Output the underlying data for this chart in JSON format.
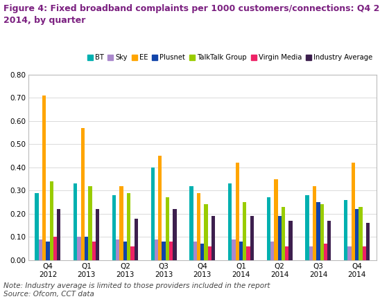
{
  "title_line1": "Figure 4: Fixed broadband complaints per 1000 customers/connections: Q4 2012 – Q4",
  "title_line2": "2014, by quarter",
  "note": "Note: Industry average is limited to those providers included in the report\nSource: Ofcom, CCT data",
  "categories": [
    "Q4\n2012",
    "Q1\n2013",
    "Q2\n2013",
    "Q3\n2013",
    "Q4\n2013",
    "Q1\n2014",
    "Q2\n2014",
    "Q3\n2014",
    "Q4\n2014"
  ],
  "series": {
    "BT": [
      0.29,
      0.33,
      0.28,
      0.4,
      0.32,
      0.33,
      0.27,
      0.28,
      0.26
    ],
    "Sky": [
      0.09,
      0.1,
      0.09,
      0.09,
      0.08,
      0.09,
      0.08,
      0.06,
      0.06
    ],
    "EE": [
      0.71,
      0.57,
      0.32,
      0.45,
      0.29,
      0.42,
      0.35,
      0.32,
      0.42
    ],
    "Plusnet": [
      0.08,
      0.1,
      0.08,
      0.08,
      0.07,
      0.08,
      0.19,
      0.25,
      0.22
    ],
    "TalkTalk Group": [
      0.34,
      0.32,
      0.29,
      0.27,
      0.24,
      0.25,
      0.23,
      0.24,
      0.23
    ],
    "Virgin Media": [
      0.1,
      0.08,
      0.06,
      0.08,
      0.06,
      0.06,
      0.06,
      0.07,
      0.06
    ],
    "Industry Average": [
      0.22,
      0.22,
      0.18,
      0.22,
      0.19,
      0.19,
      0.17,
      0.17,
      0.16
    ]
  },
  "colors": {
    "BT": "#00B0B0",
    "Sky": "#AA88CC",
    "EE": "#FFA500",
    "Plusnet": "#1144AA",
    "TalkTalk Group": "#99CC00",
    "Virgin Media": "#EE2266",
    "Industry Average": "#3D1F4E"
  },
  "ylim": [
    0,
    0.8
  ],
  "yticks": [
    0.0,
    0.1,
    0.2,
    0.3,
    0.4,
    0.5,
    0.6,
    0.7,
    0.8
  ],
  "title_color": "#7B2080",
  "note_color": "#444444",
  "title_fontsize": 9.0,
  "legend_fontsize": 7.2,
  "axis_fontsize": 7.5,
  "note_fontsize": 7.5,
  "bar_width": 0.095
}
